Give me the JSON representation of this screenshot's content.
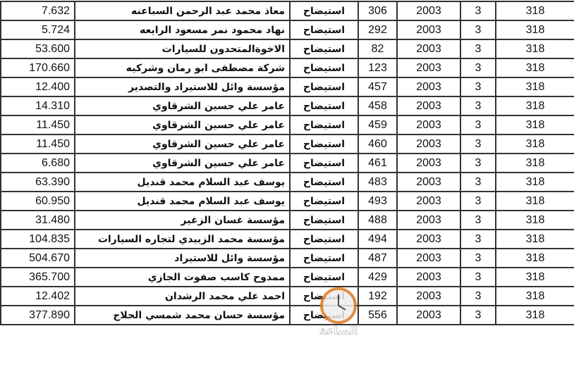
{
  "rows": [
    {
      "amount": "7.632",
      "name": "معاذ محمد عبد الرحمن السباعنه",
      "type": "استيضاح",
      "number": "306",
      "year": "2003",
      "c3": "3",
      "c318": "318"
    },
    {
      "amount": "5.724",
      "name": "نهاد محمود نمر مسعود الرايعه",
      "type": "استيضاح",
      "number": "292",
      "year": "2003",
      "c3": "3",
      "c318": "318"
    },
    {
      "amount": "53.600",
      "name": "الاخوةالمتحدون للسيارات",
      "type": "استيضاح",
      "number": "82",
      "year": "2003",
      "c3": "3",
      "c318": "318"
    },
    {
      "amount": "170.660",
      "name": "شركة مصطفى ابو رمان وشركيه",
      "type": "استيضاح",
      "number": "123",
      "year": "2003",
      "c3": "3",
      "c318": "318"
    },
    {
      "amount": "12.400",
      "name": "مؤسسة وائل للاستيراد والتصدير",
      "type": "استيضاح",
      "number": "457",
      "year": "2003",
      "c3": "3",
      "c318": "318"
    },
    {
      "amount": "14.310",
      "name": "عامر علي حسين الشرقاوي",
      "type": "استيضاح",
      "number": "458",
      "year": "2003",
      "c3": "3",
      "c318": "318"
    },
    {
      "amount": "11.450",
      "name": "عامر علي حسين الشرقاوي",
      "type": "استيضاح",
      "number": "459",
      "year": "2003",
      "c3": "3",
      "c318": "318"
    },
    {
      "amount": "11.450",
      "name": "عامر علي حسين الشرقاوي",
      "type": "استيضاح",
      "number": "460",
      "year": "2003",
      "c3": "3",
      "c318": "318"
    },
    {
      "amount": "6.680",
      "name": "عامر علي حسين الشرقاوي",
      "type": "استيضاح",
      "number": "461",
      "year": "2003",
      "c3": "3",
      "c318": "318"
    },
    {
      "amount": "63.390",
      "name": "يوسف عبد السلام محمد قنديل",
      "type": "استيضاح",
      "number": "483",
      "year": "2003",
      "c3": "3",
      "c318": "318"
    },
    {
      "amount": "60.950",
      "name": "يوسف عبد السلام محمد قنديل",
      "type": "استيضاح",
      "number": "493",
      "year": "2003",
      "c3": "3",
      "c318": "318"
    },
    {
      "amount": "31.480",
      "name": "مؤسسة غسان الزغير",
      "type": "استيضاح",
      "number": "488",
      "year": "2003",
      "c3": "3",
      "c318": "318"
    },
    {
      "amount": "104.835",
      "name": "مؤسسة محمد الزبيدي لتجاره السيارات",
      "type": "استيضاح",
      "number": "494",
      "year": "2003",
      "c3": "3",
      "c318": "318"
    },
    {
      "amount": "504.670",
      "name": "مؤسسة وائل للاستيراد",
      "type": "استيضاح",
      "number": "487",
      "year": "2003",
      "c3": "3",
      "c318": "318"
    },
    {
      "amount": "365.700",
      "name": "ممدوح كاسب صفوت الجازي",
      "type": "استيضاح",
      "number": "429",
      "year": "2003",
      "c3": "3",
      "c318": "318"
    },
    {
      "amount": "12.402",
      "name": "احمد علي محمد الرشدان",
      "type": "استيضاح",
      "number": "192",
      "year": "2003",
      "c3": "3",
      "c318": "318"
    },
    {
      "amount": "377.890",
      "name": "مؤسسة حسان محمد شمسي الحلاج",
      "type": "استيضاح",
      "number": "556",
      "year": "2003",
      "c3": "3",
      "c318": "318"
    }
  ],
  "watermark": {
    "text": "مدار الساعة الإخبارية",
    "icon": "clock-icon"
  }
}
